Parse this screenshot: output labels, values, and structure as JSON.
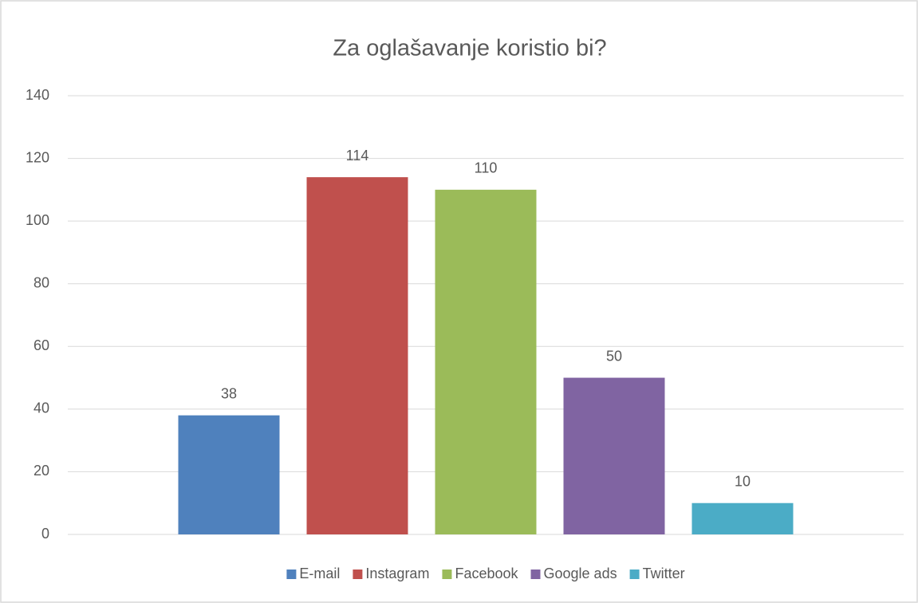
{
  "chart_data": {
    "type": "bar",
    "title": "Za oglašavanje koristio bi?",
    "categories": [
      null
    ],
    "series": [
      {
        "name": "E-mail",
        "color": "#4f81bd",
        "values": [
          38
        ]
      },
      {
        "name": "Instagram",
        "color": "#c0504d",
        "values": [
          114
        ]
      },
      {
        "name": "Facebook",
        "color": "#9bbb59",
        "values": [
          110
        ]
      },
      {
        "name": "Google ads",
        "color": "#8064a2",
        "values": [
          50
        ]
      },
      {
        "name": "Twitter",
        "color": "#4bacc6",
        "values": [
          10
        ]
      }
    ],
    "ylim": [
      0,
      140
    ],
    "yticks": [
      0,
      20,
      40,
      60,
      80,
      100,
      120,
      140
    ],
    "grid": true,
    "legend": "bottom"
  }
}
